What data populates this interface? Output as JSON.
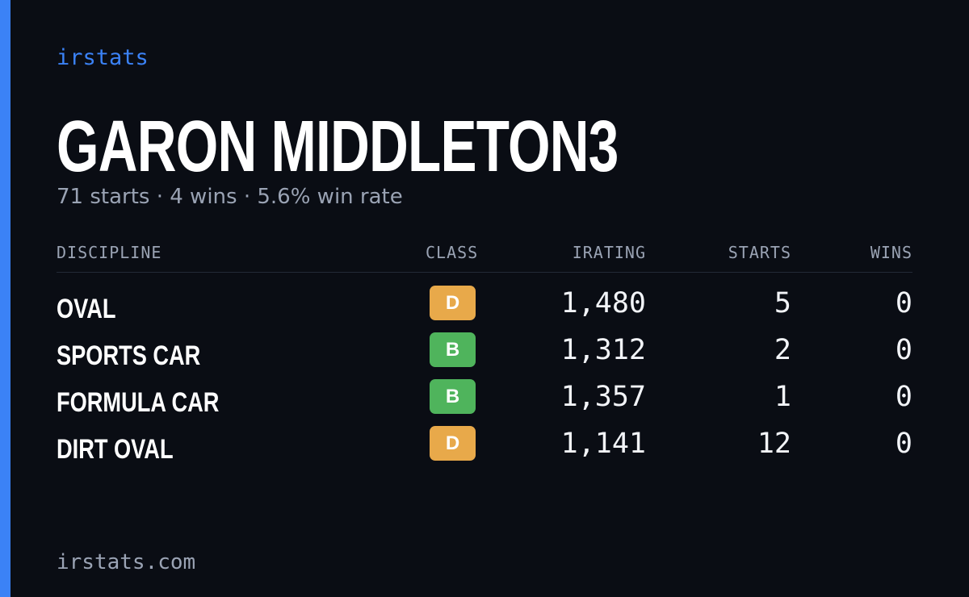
{
  "brand": "irstats",
  "player": {
    "name": "GARON MIDDLETON3",
    "summary": "71 starts · 4 wins · 5.6% win rate"
  },
  "table": {
    "headers": {
      "discipline": "DISCIPLINE",
      "class": "CLASS",
      "irating": "IRATING",
      "starts": "STARTS",
      "wins": "WINS"
    },
    "rows": [
      {
        "discipline": "OVAL",
        "class": "D",
        "irating": "1,480",
        "starts": "5",
        "wins": "0"
      },
      {
        "discipline": "SPORTS CAR",
        "class": "B",
        "irating": "1,312",
        "starts": "2",
        "wins": "0"
      },
      {
        "discipline": "FORMULA CAR",
        "class": "B",
        "irating": "1,357",
        "starts": "1",
        "wins": "0"
      },
      {
        "discipline": "DIRT OVAL",
        "class": "D",
        "irating": "1,141",
        "starts": "12",
        "wins": "0"
      }
    ]
  },
  "class_colors": {
    "D": "#e8a94a",
    "B": "#4fb45c"
  },
  "colors": {
    "accent": "#3b82f6",
    "background": "#0a0d14",
    "muted": "#9aa3b4"
  },
  "footer": "irstats.com"
}
